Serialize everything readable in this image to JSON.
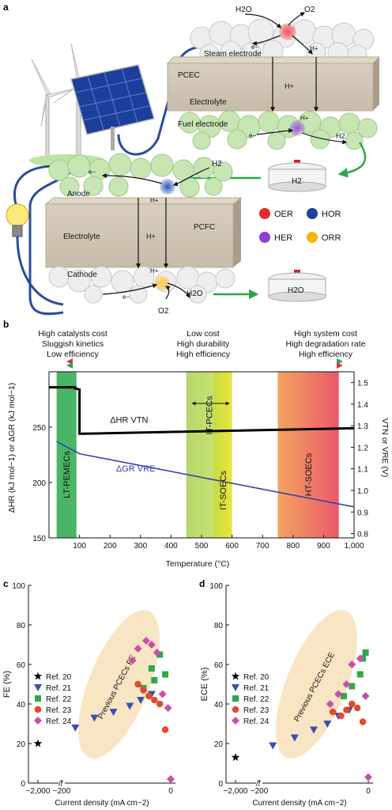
{
  "panel_a": {
    "letter": "a",
    "top": {
      "h2o": "H2O",
      "o2": "O2",
      "e": "e−",
      "hplus": "H+",
      "steam_electrode": "Steam electrode",
      "pcec": "PCEC",
      "hplus_mid": "H+",
      "electrolyte": "Electrolyte",
      "fuel_electrode": "Fuel electrode",
      "hplus_bottom": "H+",
      "e_bottom": "e−",
      "h2_out": "H2",
      "tank": "H2"
    },
    "bottom": {
      "e": "e−",
      "h2": "H2",
      "anode": "Anode",
      "hplus": "H+",
      "pcfc": "PCFC",
      "electrolyte": "Electrolyte",
      "hplus_mid": "H+",
      "cathode": "Cathode",
      "hplus_bottom": "H+",
      "e_bottom": "e−",
      "h2o": "H2O",
      "o2": "O2",
      "tank": "H2O"
    },
    "legend": [
      {
        "label": "OER",
        "color": "#e52b2b"
      },
      {
        "label": "HOR",
        "color": "#1f3f99"
      },
      {
        "label": "HER",
        "color": "#8e3fd0"
      },
      {
        "label": "ORR",
        "color": "#f5b400"
      }
    ]
  },
  "panel_b": {
    "letter": "b",
    "header_left": [
      "High catalysts cost",
      "Sluggish kinetics",
      "Low efficiency"
    ],
    "header_mid": [
      "Low cost",
      "High durability",
      "High efficiency"
    ],
    "header_right": [
      "High system cost",
      "High degradation rate",
      "High efficiency"
    ],
    "ylabel_left": "ΔHR (kJ mol−1) or ΔGR (kJ mol−1)",
    "ylabel_right": "VTN or VRE (V)",
    "xlabel": "Temperature (°C)",
    "label_dh": "ΔHR VTN",
    "label_dg": "ΔGR VRE",
    "regions": [
      {
        "label": "LT-PEMECs",
        "x0": 25,
        "x1": 90,
        "color": "#2aa84a"
      },
      {
        "label": "IT-PCECs",
        "x0": 450,
        "x1": 600,
        "color": "#9ccc3c"
      },
      {
        "label": "IT-SOECs",
        "x0": 540,
        "x1": 600,
        "color": "#e8e23a"
      },
      {
        "label": "HT-SOECs",
        "x0": 750,
        "x1": 950,
        "color": "#ec6a4a"
      }
    ]
  },
  "chart_data": [
    {
      "type": "line",
      "x_ticks": [
        "100",
        "200",
        "300",
        "400",
        "500",
        "600",
        "700",
        "800",
        "900",
        "1,000"
      ],
      "y_ticks": [
        "150",
        "200",
        "250"
      ],
      "y2_ticks": [
        "0.8",
        "0.9",
        "1.0",
        "1.1",
        "1.2",
        "1.3",
        "1.4",
        "1.5"
      ],
      "xlim": [
        0,
        1000
      ],
      "ylim": [
        150,
        300
      ],
      "y2lim": [
        0.78,
        1.55
      ],
      "series": [
        {
          "name": "ΔHR VTN",
          "color": "#000000",
          "x": [
            0,
            85,
            85,
            100,
            100,
            1000
          ],
          "y": [
            286,
            286,
            285,
            284,
            244,
            249
          ]
        },
        {
          "name": "ΔGR VRE",
          "color": "#3a3fb0",
          "x": [
            25,
            100,
            1000
          ],
          "y": [
            237,
            226,
            178
          ]
        }
      ]
    },
    {
      "type": "scatter",
      "panel": "c",
      "ylabel": "FE (%)",
      "xlabel": "Current density (mA cm−2)",
      "x_ticks": [
        "−2,000",
        "−200",
        "0"
      ],
      "y_ticks": [
        "0",
        "20",
        "40",
        "60",
        "80",
        "100"
      ],
      "ylim": [
        0,
        100
      ],
      "annotation": "Previous PCECs FE",
      "series": [
        {
          "name": "Ref. 20",
          "marker": "star",
          "color": "#000000",
          "x": [
            -2000
          ],
          "y": [
            20
          ]
        },
        {
          "name": "Ref. 21",
          "marker": "triangle",
          "color": "#3a4fb0",
          "x": [
            -175,
            -140,
            -105,
            -75,
            -55,
            -35
          ],
          "y": [
            28,
            33,
            36,
            39,
            42,
            45
          ]
        },
        {
          "name": "Ref. 22",
          "marker": "square",
          "color": "#2fa84a",
          "x": [
            -50,
            -30,
            -10,
            -35,
            -20
          ],
          "y": [
            48,
            52,
            55,
            58,
            65
          ]
        },
        {
          "name": "Ref. 23",
          "marker": "circle",
          "color": "#e24a2a",
          "x": [
            -60,
            -50,
            -40,
            -30,
            -20,
            -10
          ],
          "y": [
            50,
            47,
            44,
            42,
            40,
            27
          ]
        },
        {
          "name": "Ref. 24",
          "marker": "diamond",
          "color": "#c94fa8",
          "x": [
            -70,
            -60,
            -45,
            -35,
            -25,
            -15,
            -5,
            0
          ],
          "y": [
            62,
            68,
            72,
            70,
            66,
            45,
            38,
            2
          ]
        }
      ]
    },
    {
      "type": "scatter",
      "panel": "d",
      "ylabel": "ECE (%)",
      "xlabel": "Current density (mA cm−2)",
      "x_ticks": [
        "−2,000",
        "−200",
        "0"
      ],
      "y_ticks": [
        "0",
        "20",
        "40",
        "60",
        "80",
        "100"
      ],
      "ylim": [
        0,
        100
      ],
      "annotation": "Previous PCECs ECE",
      "series": [
        {
          "name": "Ref. 20",
          "marker": "star",
          "color": "#000000",
          "x": [
            -2000
          ],
          "y": [
            13
          ]
        },
        {
          "name": "Ref. 21",
          "marker": "triangle",
          "color": "#3a4fb0",
          "x": [
            -175,
            -135,
            -100,
            -75,
            -55,
            -35
          ],
          "y": [
            19,
            23,
            27,
            30,
            34,
            37
          ]
        },
        {
          "name": "Ref. 22",
          "marker": "square",
          "color": "#2fa84a",
          "x": [
            -45,
            -30,
            -15,
            -10,
            -5
          ],
          "y": [
            44,
            49,
            55,
            63,
            66
          ]
        },
        {
          "name": "Ref. 23",
          "marker": "circle",
          "color": "#e24a2a",
          "x": [
            -65,
            -50,
            -40,
            -30,
            -20,
            -10
          ],
          "y": [
            36,
            34,
            37,
            40,
            38,
            31
          ]
        },
        {
          "name": "Ref. 24",
          "marker": "diamond",
          "color": "#c94fa8",
          "x": [
            -70,
            -55,
            -40,
            -30,
            -15,
            -5,
            0
          ],
          "y": [
            40,
            45,
            50,
            60,
            63,
            44,
            3
          ]
        }
      ]
    }
  ]
}
